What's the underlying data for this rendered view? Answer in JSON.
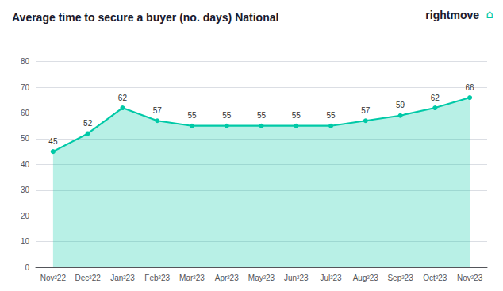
{
  "chart_data": {
    "type": "line",
    "title": "Average time to secure a buyer (no. days) National",
    "annotations": [
      "rightmove",
      "⌂"
    ],
    "categories": [
      "Nov²22",
      "Dec²22",
      "Jan²23",
      "Feb²23",
      "Mar²23",
      "Apr²23",
      "May²23",
      "Jun²23",
      "Jul²23",
      "Aug²23",
      "Sep²23",
      "Oct²23",
      "Nov²23"
    ],
    "values": [
      45,
      52,
      62,
      57,
      55,
      55,
      55,
      55,
      55,
      57,
      59,
      62,
      66
    ],
    "color": "#00c9a7",
    "ylim": [
      0,
      87
    ],
    "yticks": [
      0,
      10,
      20,
      30,
      40,
      50,
      60,
      70,
      80
    ],
    "grid": true,
    "data_labels": true
  }
}
